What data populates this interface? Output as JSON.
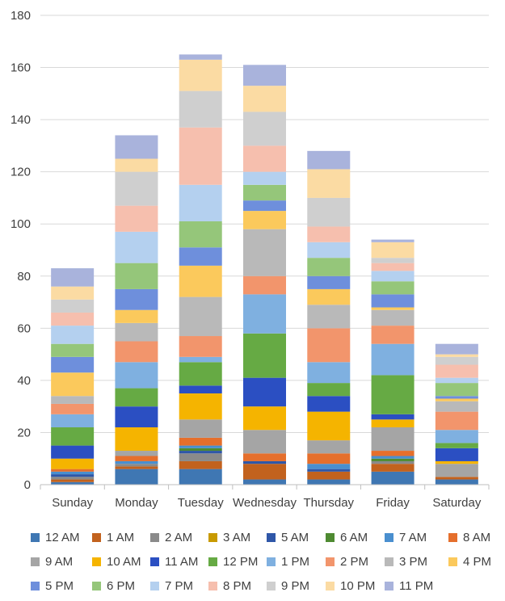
{
  "chart_data": {
    "type": "bar",
    "stacked": true,
    "title": "",
    "xlabel": "",
    "ylabel": "",
    "ylim": [
      0,
      180
    ],
    "yticks": [
      0,
      20,
      40,
      60,
      80,
      100,
      120,
      140,
      160,
      180
    ],
    "grid": true,
    "legend_position": "bottom",
    "categories": [
      "Sunday",
      "Monday",
      "Tuesday",
      "Wednesday",
      "Thursday",
      "Friday",
      "Saturday"
    ],
    "series": [
      {
        "name": "12 AM",
        "color": "#3f77b3",
        "values": [
          1,
          6,
          6,
          2,
          2,
          5,
          2
        ]
      },
      {
        "name": "1 AM",
        "color": "#c2621e",
        "values": [
          1,
          1,
          3,
          6,
          3,
          3,
          1
        ]
      },
      {
        "name": "2 AM",
        "color": "#8a8a8a",
        "values": [
          1,
          1,
          3,
          0,
          0,
          1,
          0
        ]
      },
      {
        "name": "3 AM",
        "color": "#c89a00",
        "values": [
          0,
          0,
          0,
          0,
          0,
          0,
          0
        ]
      },
      {
        "name": "5 AM",
        "color": "#2f57a8",
        "values": [
          1,
          0,
          1,
          1,
          1,
          0,
          0
        ]
      },
      {
        "name": "6 AM",
        "color": "#4e8a31",
        "values": [
          0,
          0,
          1,
          0,
          0,
          1,
          0
        ]
      },
      {
        "name": "7 AM",
        "color": "#4a8fcf",
        "values": [
          1,
          1,
          1,
          0,
          2,
          1,
          0
        ]
      },
      {
        "name": "8 AM",
        "color": "#e56f2c",
        "values": [
          1,
          2,
          3,
          3,
          4,
          2,
          0
        ]
      },
      {
        "name": "9 AM",
        "color": "#a5a5a5",
        "values": [
          0,
          2,
          7,
          9,
          5,
          9,
          5
        ]
      },
      {
        "name": "10 AM",
        "color": "#f5b400",
        "values": [
          4,
          9,
          10,
          9,
          11,
          3,
          1
        ]
      },
      {
        "name": "11 AM",
        "color": "#2b4fc2",
        "values": [
          5,
          8,
          3,
          11,
          6,
          2,
          5
        ]
      },
      {
        "name": "12 PM",
        "color": "#66aa44",
        "values": [
          7,
          7,
          9,
          17,
          5,
          15,
          2
        ]
      },
      {
        "name": "1 PM",
        "color": "#7fb0e0",
        "values": [
          5,
          10,
          2,
          15,
          8,
          12,
          5
        ]
      },
      {
        "name": "2 PM",
        "color": "#f2956c",
        "values": [
          4,
          8,
          8,
          7,
          13,
          7,
          7
        ]
      },
      {
        "name": "3 PM",
        "color": "#b9b9b9",
        "values": [
          3,
          7,
          15,
          18,
          9,
          6,
          4
        ]
      },
      {
        "name": "4 PM",
        "color": "#fbc95c",
        "values": [
          9,
          5,
          12,
          7,
          6,
          1,
          1
        ]
      },
      {
        "name": "5 PM",
        "color": "#6e8fdc",
        "values": [
          6,
          8,
          7,
          4,
          5,
          5,
          1
        ]
      },
      {
        "name": "6 PM",
        "color": "#95c67a",
        "values": [
          5,
          10,
          10,
          6,
          7,
          5,
          5
        ]
      },
      {
        "name": "7 PM",
        "color": "#b4d0ef",
        "values": [
          7,
          12,
          14,
          5,
          6,
          4,
          2
        ]
      },
      {
        "name": "8 PM",
        "color": "#f6bfae",
        "values": [
          5,
          10,
          22,
          10,
          6,
          3,
          5
        ]
      },
      {
        "name": "9 PM",
        "color": "#cfcfcf",
        "values": [
          5,
          13,
          14,
          13,
          11,
          2,
          3
        ]
      },
      {
        "name": "10 PM",
        "color": "#fbdba3",
        "values": [
          5,
          5,
          12,
          10,
          11,
          6,
          1
        ]
      },
      {
        "name": "11 PM",
        "color": "#a9b3dc",
        "values": [
          7,
          9,
          2,
          8,
          7,
          1,
          4
        ]
      }
    ]
  }
}
